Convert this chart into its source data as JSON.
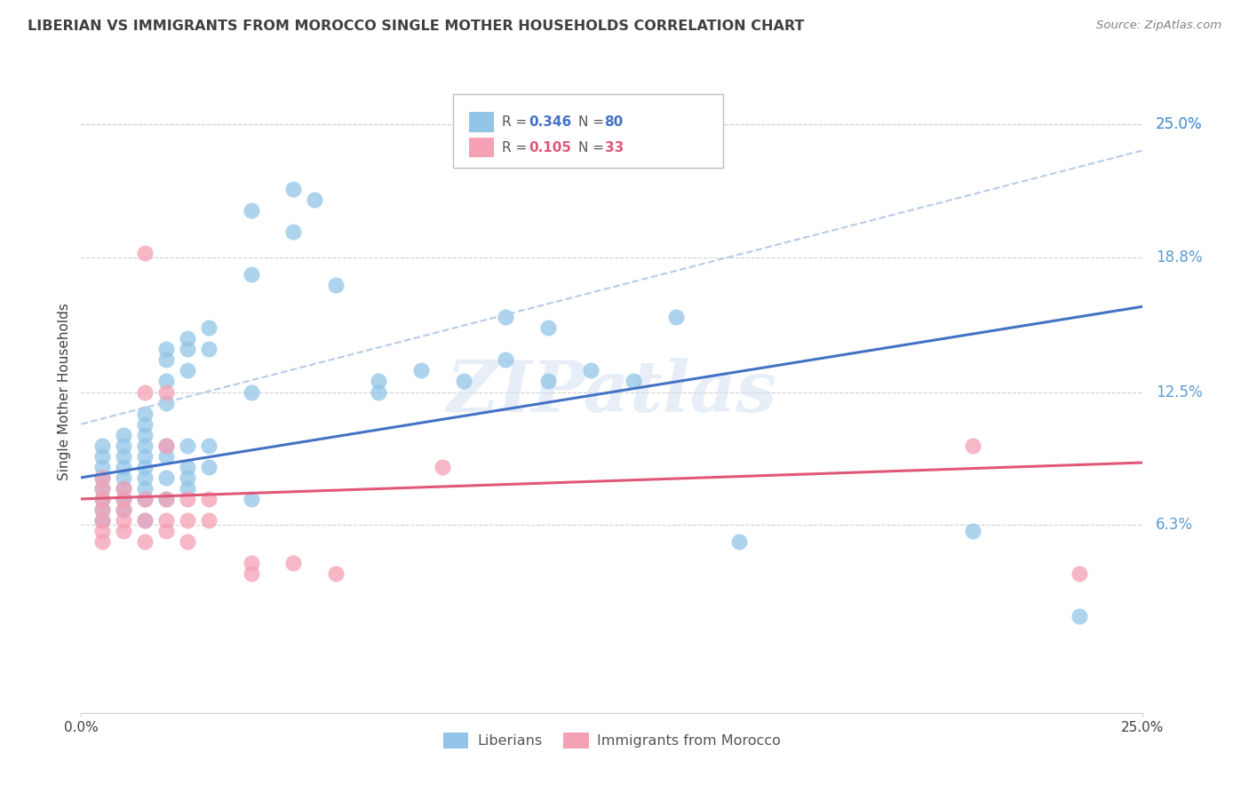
{
  "title": "LIBERIAN VS IMMIGRANTS FROM MOROCCO SINGLE MOTHER HOUSEHOLDS CORRELATION CHART",
  "source": "Source: ZipAtlas.com",
  "ylabel": "Single Mother Households",
  "ytick_labels": [
    "25.0%",
    "18.8%",
    "12.5%",
    "6.3%"
  ],
  "ytick_values": [
    0.25,
    0.188,
    0.125,
    0.063
  ],
  "xmin": 0.0,
  "xmax": 0.25,
  "ymin": -0.025,
  "ymax": 0.275,
  "watermark": "ZIPatlas",
  "blue_color": "#92C5E8",
  "pink_color": "#F4A0B5",
  "blue_line_color": "#4472C4",
  "pink_line_color": "#E05878",
  "dash_line_color": "#B8CCE4",
  "grid_color": "#D0D0D0",
  "right_label_color": "#5B9BD5",
  "title_color": "#404040",
  "source_color": "#808080",
  "ylabel_color": "#404040",
  "xtick_color": "#404040",
  "scatter_blue": [
    [
      0.005,
      0.1
    ],
    [
      0.005,
      0.095
    ],
    [
      0.005,
      0.09
    ],
    [
      0.005,
      0.085
    ],
    [
      0.005,
      0.08
    ],
    [
      0.005,
      0.075
    ],
    [
      0.005,
      0.07
    ],
    [
      0.005,
      0.065
    ],
    [
      0.01,
      0.105
    ],
    [
      0.01,
      0.1
    ],
    [
      0.01,
      0.095
    ],
    [
      0.01,
      0.09
    ],
    [
      0.01,
      0.085
    ],
    [
      0.01,
      0.08
    ],
    [
      0.01,
      0.075
    ],
    [
      0.01,
      0.07
    ],
    [
      0.015,
      0.115
    ],
    [
      0.015,
      0.11
    ],
    [
      0.015,
      0.105
    ],
    [
      0.015,
      0.1
    ],
    [
      0.015,
      0.095
    ],
    [
      0.015,
      0.09
    ],
    [
      0.015,
      0.085
    ],
    [
      0.015,
      0.08
    ],
    [
      0.015,
      0.075
    ],
    [
      0.015,
      0.065
    ],
    [
      0.02,
      0.145
    ],
    [
      0.02,
      0.14
    ],
    [
      0.02,
      0.13
    ],
    [
      0.02,
      0.12
    ],
    [
      0.02,
      0.1
    ],
    [
      0.02,
      0.095
    ],
    [
      0.02,
      0.085
    ],
    [
      0.02,
      0.075
    ],
    [
      0.025,
      0.15
    ],
    [
      0.025,
      0.145
    ],
    [
      0.025,
      0.135
    ],
    [
      0.025,
      0.1
    ],
    [
      0.025,
      0.09
    ],
    [
      0.025,
      0.085
    ],
    [
      0.025,
      0.08
    ],
    [
      0.03,
      0.155
    ],
    [
      0.03,
      0.145
    ],
    [
      0.03,
      0.1
    ],
    [
      0.03,
      0.09
    ],
    [
      0.04,
      0.21
    ],
    [
      0.04,
      0.18
    ],
    [
      0.04,
      0.125
    ],
    [
      0.04,
      0.075
    ],
    [
      0.05,
      0.22
    ],
    [
      0.05,
      0.2
    ],
    [
      0.055,
      0.215
    ],
    [
      0.06,
      0.175
    ],
    [
      0.07,
      0.13
    ],
    [
      0.07,
      0.125
    ],
    [
      0.08,
      0.135
    ],
    [
      0.09,
      0.13
    ],
    [
      0.1,
      0.16
    ],
    [
      0.1,
      0.14
    ],
    [
      0.11,
      0.155
    ],
    [
      0.11,
      0.13
    ],
    [
      0.12,
      0.135
    ],
    [
      0.13,
      0.13
    ],
    [
      0.14,
      0.16
    ],
    [
      0.155,
      0.055
    ],
    [
      0.21,
      0.06
    ],
    [
      0.235,
      0.02
    ]
  ],
  "scatter_pink": [
    [
      0.005,
      0.085
    ],
    [
      0.005,
      0.08
    ],
    [
      0.005,
      0.075
    ],
    [
      0.005,
      0.07
    ],
    [
      0.005,
      0.065
    ],
    [
      0.005,
      0.06
    ],
    [
      0.005,
      0.055
    ],
    [
      0.01,
      0.08
    ],
    [
      0.01,
      0.075
    ],
    [
      0.01,
      0.07
    ],
    [
      0.01,
      0.065
    ],
    [
      0.01,
      0.06
    ],
    [
      0.015,
      0.19
    ],
    [
      0.015,
      0.125
    ],
    [
      0.015,
      0.075
    ],
    [
      0.015,
      0.065
    ],
    [
      0.015,
      0.055
    ],
    [
      0.02,
      0.125
    ],
    [
      0.02,
      0.1
    ],
    [
      0.02,
      0.075
    ],
    [
      0.02,
      0.065
    ],
    [
      0.02,
      0.06
    ],
    [
      0.025,
      0.075
    ],
    [
      0.025,
      0.065
    ],
    [
      0.025,
      0.055
    ],
    [
      0.03,
      0.075
    ],
    [
      0.03,
      0.065
    ],
    [
      0.04,
      0.045
    ],
    [
      0.04,
      0.04
    ],
    [
      0.05,
      0.045
    ],
    [
      0.06,
      0.04
    ],
    [
      0.085,
      0.09
    ],
    [
      0.21,
      0.1
    ],
    [
      0.235,
      0.04
    ]
  ],
  "blue_trendline": [
    [
      0.0,
      0.085
    ],
    [
      0.25,
      0.165
    ]
  ],
  "pink_trendline": [
    [
      0.0,
      0.075
    ],
    [
      0.25,
      0.092
    ]
  ],
  "dash_trendline": [
    [
      0.0,
      0.11
    ],
    [
      0.25,
      0.238
    ]
  ]
}
